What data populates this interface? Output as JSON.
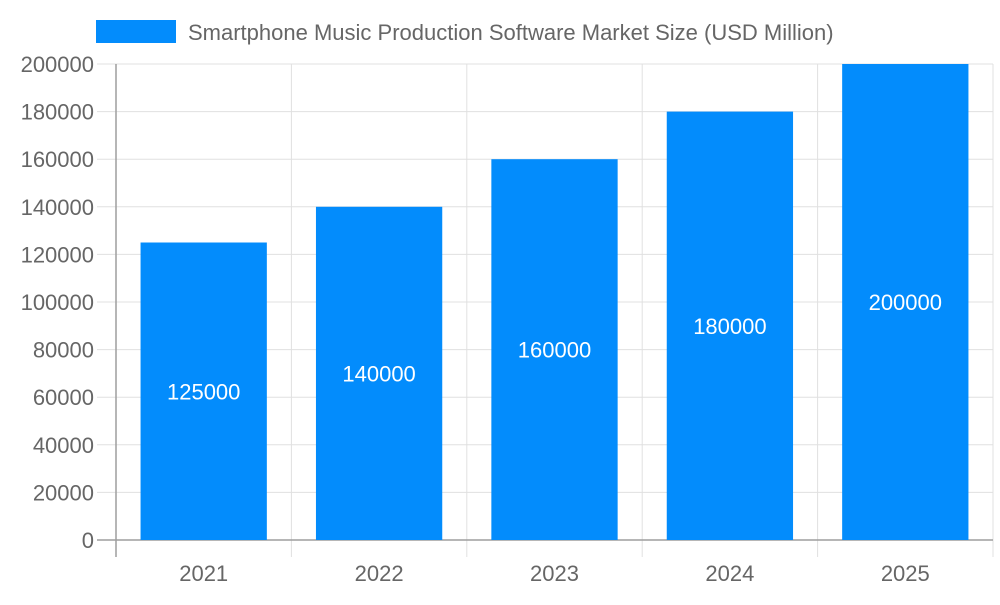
{
  "chart_data": {
    "type": "bar",
    "categories": [
      "2021",
      "2022",
      "2023",
      "2024",
      "2025"
    ],
    "series": [
      {
        "name": "Smartphone Music Production Software Market Size (USD Million)",
        "values": [
          125000,
          140000,
          160000,
          180000,
          200000
        ]
      }
    ],
    "ylim": [
      0,
      200000
    ],
    "yticks": [
      "0",
      "20000",
      "40000",
      "60000",
      "80000",
      "100000",
      "120000",
      "140000",
      "160000",
      "180000",
      "200000"
    ],
    "data_labels": [
      "125000",
      "140000",
      "160000",
      "180000",
      "200000"
    ],
    "grid": true,
    "legend": "top",
    "colors": {
      "bar": "#038cfc",
      "grid": "#e0e0e0",
      "axis": "#9e9e9e",
      "text": "#666666",
      "label": "#ffffff"
    }
  }
}
